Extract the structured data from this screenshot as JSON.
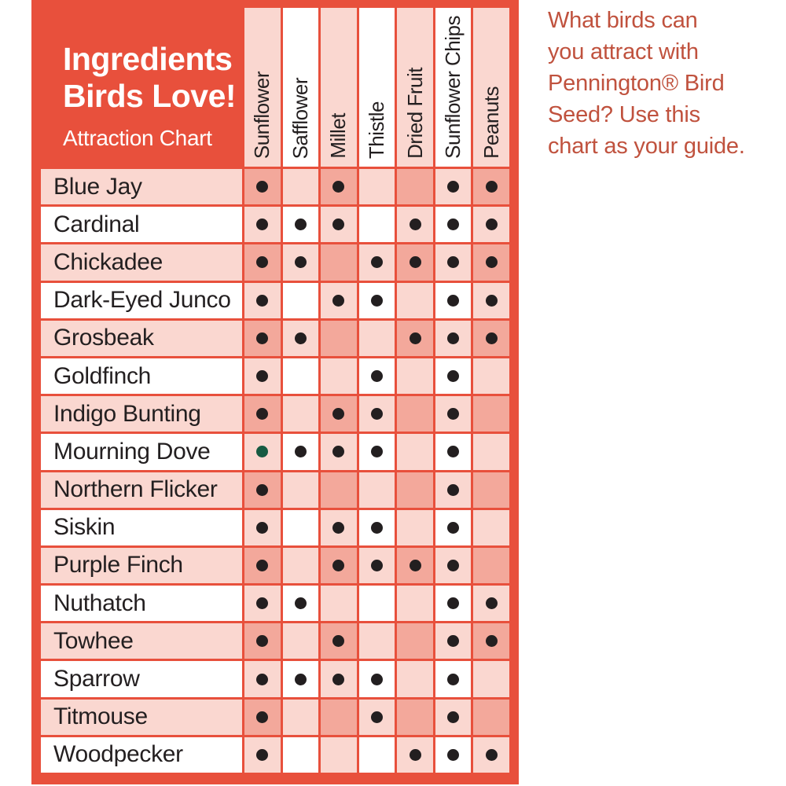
{
  "header_box": {
    "title_line1": "Ingredients",
    "title_line2": "Birds Love!",
    "subtitle": "Attraction Chart"
  },
  "side_note": {
    "text": "What birds can\nyou attract with\nPennington® Bird\nSeed? Use this\nchart as your guide."
  },
  "chart_data": {
    "type": "table",
    "title": "Ingredients Birds Love! Attraction Chart",
    "columns": [
      "Sunflower",
      "Safflower",
      "Millet",
      "Thistle",
      "Dried Fruit",
      "Sunflower Chips",
      "Peanuts"
    ],
    "cell_encoding": {
      "0": "no dot",
      "1": "black dot",
      "2": "green dot"
    },
    "rows": [
      {
        "bird": "Blue Jay",
        "attracts": [
          1,
          0,
          1,
          0,
          0,
          1,
          1
        ]
      },
      {
        "bird": "Cardinal",
        "attracts": [
          1,
          1,
          1,
          0,
          1,
          1,
          1
        ]
      },
      {
        "bird": "Chickadee",
        "attracts": [
          1,
          1,
          0,
          1,
          1,
          1,
          1
        ]
      },
      {
        "bird": "Dark-Eyed Junco",
        "attracts": [
          1,
          0,
          1,
          1,
          0,
          1,
          1
        ]
      },
      {
        "bird": "Grosbeak",
        "attracts": [
          1,
          1,
          0,
          0,
          1,
          1,
          1
        ]
      },
      {
        "bird": "Goldfinch",
        "attracts": [
          1,
          0,
          0,
          1,
          0,
          1,
          0
        ]
      },
      {
        "bird": "Indigo Bunting",
        "attracts": [
          1,
          0,
          1,
          1,
          0,
          1,
          0
        ]
      },
      {
        "bird": "Mourning Dove",
        "attracts": [
          2,
          1,
          1,
          1,
          0,
          1,
          0
        ]
      },
      {
        "bird": "Northern Flicker",
        "attracts": [
          1,
          0,
          0,
          0,
          0,
          1,
          0
        ]
      },
      {
        "bird": "Siskin",
        "attracts": [
          1,
          0,
          1,
          1,
          0,
          1,
          0
        ]
      },
      {
        "bird": "Purple Finch",
        "attracts": [
          1,
          0,
          1,
          1,
          1,
          1,
          0
        ]
      },
      {
        "bird": "Nuthatch",
        "attracts": [
          1,
          1,
          0,
          0,
          0,
          1,
          1
        ]
      },
      {
        "bird": "Towhee",
        "attracts": [
          1,
          0,
          1,
          0,
          0,
          1,
          1
        ]
      },
      {
        "bird": "Sparrow",
        "attracts": [
          1,
          1,
          1,
          1,
          0,
          1,
          0
        ]
      },
      {
        "bird": "Titmouse",
        "attracts": [
          1,
          0,
          0,
          1,
          0,
          1,
          0
        ]
      },
      {
        "bird": "Woodpecker",
        "attracts": [
          1,
          0,
          0,
          0,
          1,
          1,
          1
        ]
      }
    ]
  },
  "colors": {
    "frame_red": "#E8503C",
    "cell_dark_pink": "#F3A89B",
    "cell_light_pink": "#FAD7D0",
    "cell_white": "#FFFFFF",
    "dot_black": "#231F20",
    "dot_green": "#175A42",
    "label_text": "#231F20",
    "side_note_red": "#C0523E"
  }
}
